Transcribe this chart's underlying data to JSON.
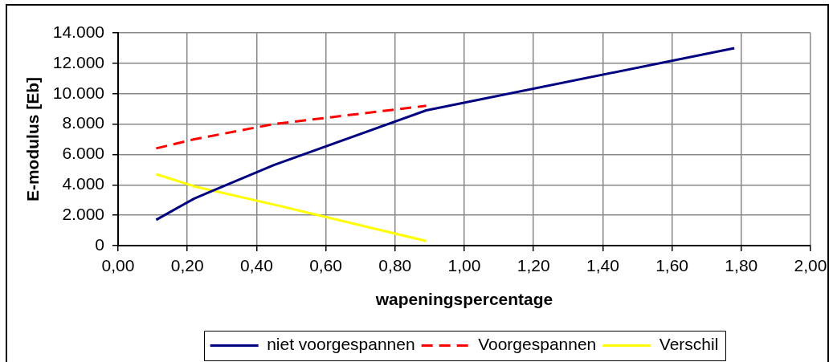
{
  "chart_data": {
    "type": "line",
    "xlabel": "wapeningspercentage",
    "ylabel": "E-modulus [Eb]",
    "x": [
      0.11,
      0.22,
      0.45,
      0.89,
      1.78
    ],
    "series": [
      {
        "name": "niet voorgespannen",
        "color": "#000080",
        "values": [
          1700,
          3100,
          5300,
          8900,
          13000
        ]
      },
      {
        "name": "Voorgespannen",
        "color": "#ff0000",
        "values": [
          6400,
          7000,
          8000,
          9200,
          null
        ],
        "line_style": "dashed"
      },
      {
        "name": "Verschil",
        "color": "#ffff00",
        "values": [
          4700,
          3900,
          2700,
          300,
          null
        ]
      }
    ],
    "xlim": [
      0,
      2
    ],
    "xticks": [
      {
        "value": 0,
        "label": "0,00"
      },
      {
        "value": 0.2,
        "label": "0,20"
      },
      {
        "value": 0.4,
        "label": "0,40"
      },
      {
        "value": 0.6,
        "label": "0,60"
      },
      {
        "value": 0.8,
        "label": "0,80"
      },
      {
        "value": 1,
        "label": "1,00"
      },
      {
        "value": 1.2,
        "label": "1,20"
      },
      {
        "value": 1.4,
        "label": "1,40"
      },
      {
        "value": 1.6,
        "label": "1,60"
      },
      {
        "value": 1.8,
        "label": "1,80"
      },
      {
        "value": 2,
        "label": "2,00"
      }
    ],
    "ylim": [
      0,
      14000
    ],
    "yticks": [
      0,
      {
        "value": 2000,
        "label": "2.000"
      },
      {
        "value": 4000,
        "label": "4.000"
      },
      {
        "value": 6000,
        "label": "6.000"
      },
      {
        "value": 8000,
        "label": "8.000"
      },
      {
        "value": 10000,
        "label": "10.000"
      },
      {
        "value": 12000,
        "label": "12.000"
      },
      {
        "value": 14000,
        "label": "14.000"
      }
    ],
    "grid": true,
    "legend": "bottom",
    "marker": "none",
    "line_style": "solid"
  }
}
